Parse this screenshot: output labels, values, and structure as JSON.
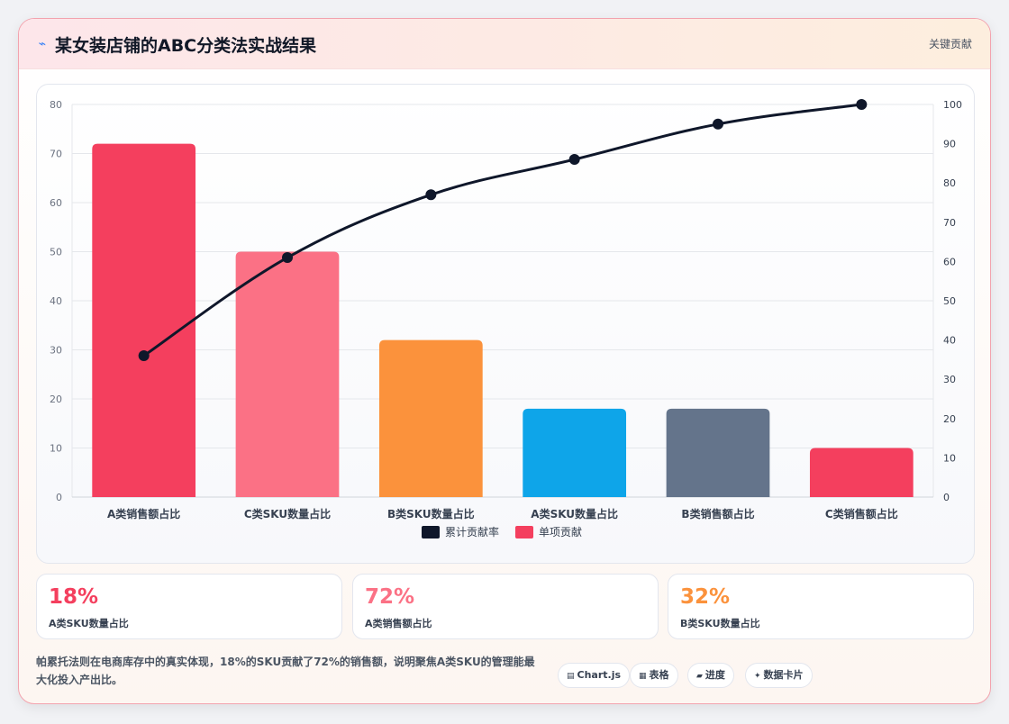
{
  "header": {
    "icon": "lightning-icon",
    "title": "某女装店铺的ABC分类法实战结果",
    "tag": "关键贡献"
  },
  "chart_data": {
    "type": "bar",
    "categories": [
      "A类销售额占比",
      "C类SKU数量占比",
      "B类SKU数量占比",
      "A类SKU数量占比",
      "B类销售额占比",
      "C类销售额占比"
    ],
    "series": [
      {
        "name": "单项贡献",
        "type": "bar",
        "axis": "left",
        "values": [
          72,
          50,
          32,
          18,
          18,
          10
        ],
        "colors": [
          "#f43f5e",
          "#fb7185",
          "#fb923c",
          "#0ea5e9",
          "#64748b",
          "#f43f5e"
        ]
      },
      {
        "name": "累计贡献率",
        "type": "line",
        "axis": "right",
        "values": [
          36,
          61,
          77,
          86,
          95,
          100
        ],
        "color": "#0f172a"
      }
    ],
    "y_left": {
      "min": 0,
      "max": 80,
      "ticks": [
        0,
        10,
        20,
        30,
        40,
        50,
        60,
        70,
        80
      ]
    },
    "y_right": {
      "min": 0,
      "max": 100,
      "ticks": [
        0,
        10,
        20,
        30,
        40,
        50,
        60,
        70,
        80,
        90,
        100
      ]
    },
    "legend": [
      {
        "label": "累计贡献率",
        "color": "#0f172a"
      },
      {
        "label": "单项贡献",
        "color": "#f43f5e"
      }
    ],
    "legend_position": "bottom",
    "grid": true
  },
  "stats": [
    {
      "value": "18%",
      "label": "A类SKU数量占比",
      "color": "#f43f5e"
    },
    {
      "value": "72%",
      "label": "A类销售额占比",
      "color": "#fb7185"
    },
    {
      "value": "32%",
      "label": "B类SKU数量占比",
      "color": "#fb923c"
    }
  ],
  "description": "帕累托法则在电商库存中的真实体现，18%的SKU贡献了72%的销售额，说明聚焦A类SKU的管理能最大化投入产出比。",
  "chips": [
    {
      "icon": "chart-icon",
      "label": "Chart.js"
    },
    {
      "icon": "table-icon",
      "label": "表格"
    },
    {
      "icon": "progress-icon",
      "label": "进度"
    },
    {
      "icon": "data-card-icon",
      "label": "数据卡片"
    }
  ]
}
